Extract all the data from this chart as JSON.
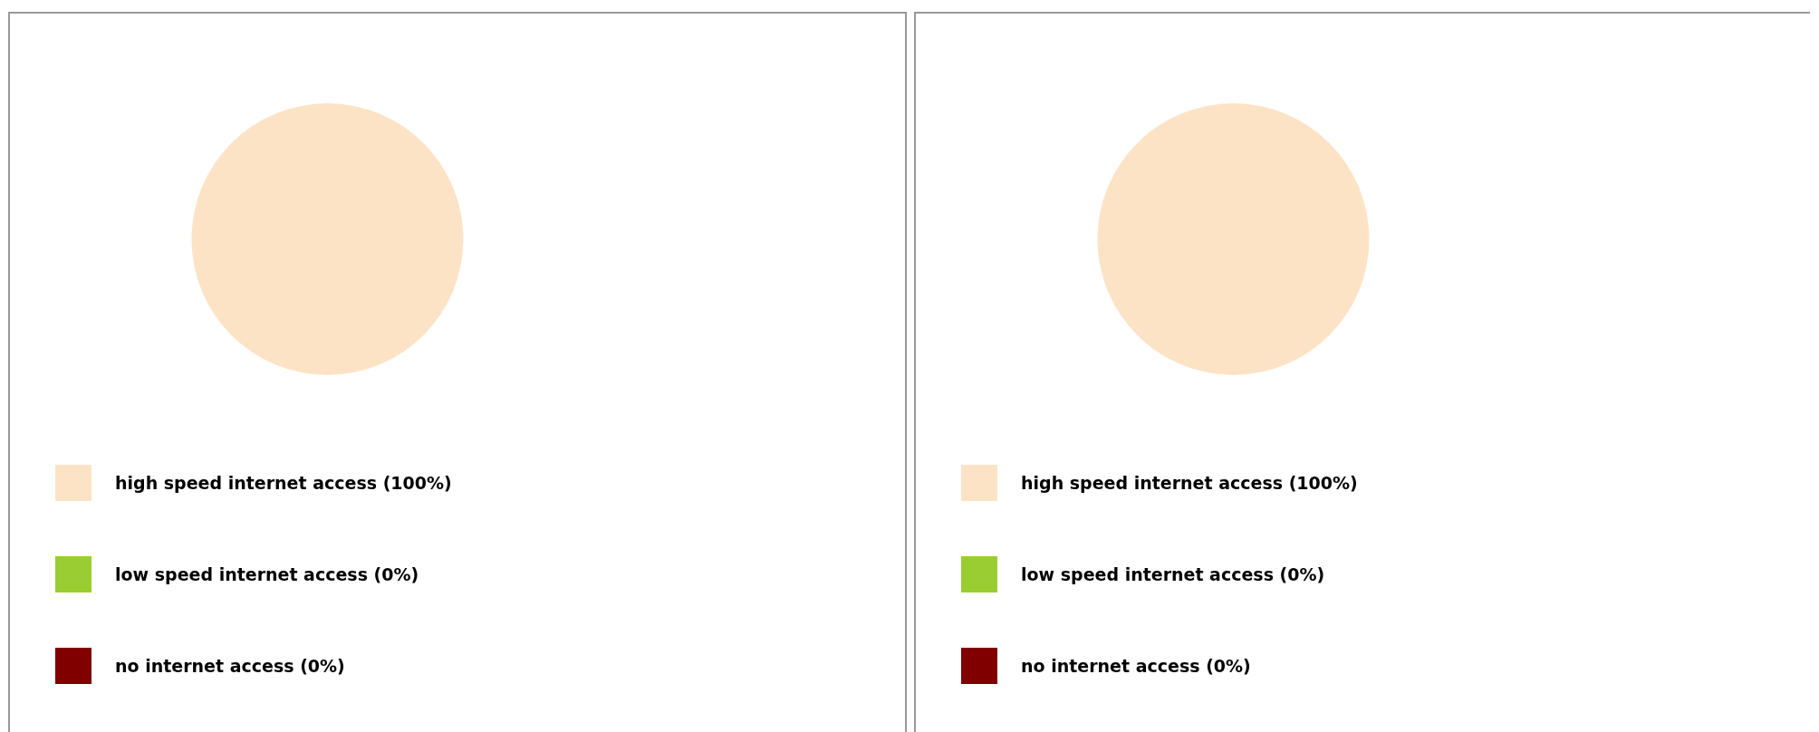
{
  "chart_data": [
    {
      "type": "pie",
      "categories": [
        "high speed internet access",
        "low speed internet access",
        "no internet access"
      ],
      "values": [
        100,
        0,
        0
      ],
      "value_labels": [
        "(100%)",
        "(0%)",
        "(0%)"
      ],
      "colors": [
        "#fde3c6",
        "#9acd32",
        "#800000"
      ],
      "legend": "bottom"
    },
    {
      "type": "pie",
      "categories": [
        "high speed internet access",
        "low speed internet access",
        "no internet access"
      ],
      "values": [
        100,
        0,
        0
      ],
      "value_labels": [
        "(100%)",
        "(0%)",
        "(0%)"
      ],
      "colors": [
        "#fde3c6",
        "#9acd32",
        "#800000"
      ],
      "legend": "bottom"
    }
  ]
}
